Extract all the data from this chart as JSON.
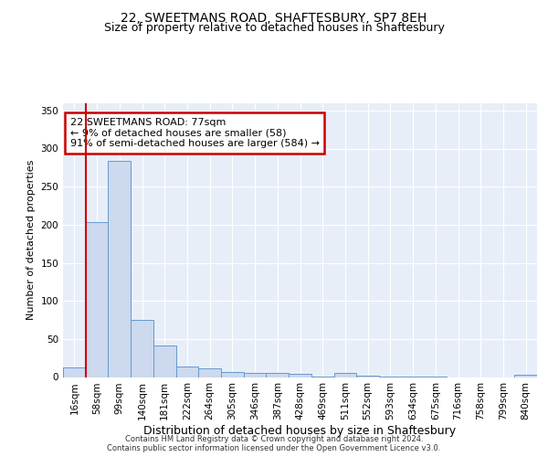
{
  "title": "22, SWEETMANS ROAD, SHAFTESBURY, SP7 8EH",
  "subtitle": "Size of property relative to detached houses in Shaftesbury",
  "xlabel": "Distribution of detached houses by size in Shaftesbury",
  "ylabel": "Number of detached properties",
  "bin_labels": [
    "16sqm",
    "58sqm",
    "99sqm",
    "140sqm",
    "181sqm",
    "222sqm",
    "264sqm",
    "305sqm",
    "346sqm",
    "387sqm",
    "428sqm",
    "469sqm",
    "511sqm",
    "552sqm",
    "593sqm",
    "634sqm",
    "675sqm",
    "716sqm",
    "758sqm",
    "799sqm",
    "840sqm"
  ],
  "bar_values": [
    13,
    203,
    284,
    75,
    42,
    14,
    11,
    7,
    5,
    5,
    4,
    1,
    5,
    2,
    1,
    1,
    1,
    0,
    0,
    0,
    3
  ],
  "bar_color": "#ccd9ee",
  "bar_edge_color": "#6699cc",
  "highlight_color": "#cc0000",
  "annotation_text": "22 SWEETMANS ROAD: 77sqm\n← 9% of detached houses are smaller (58)\n91% of semi-detached houses are larger (584) →",
  "annotation_box_color": "#ffffff",
  "annotation_box_edge": "#cc0000",
  "ylim": [
    0,
    360
  ],
  "yticks": [
    0,
    50,
    100,
    150,
    200,
    250,
    300,
    350
  ],
  "background_color": "#e8eef8",
  "grid_color": "#ffffff",
  "footer_text": "Contains HM Land Registry data © Crown copyright and database right 2024.\nContains public sector information licensed under the Open Government Licence v3.0.",
  "title_fontsize": 10,
  "subtitle_fontsize": 9,
  "ylabel_fontsize": 8,
  "xlabel_fontsize": 9,
  "tick_fontsize": 7.5,
  "annot_fontsize": 8
}
